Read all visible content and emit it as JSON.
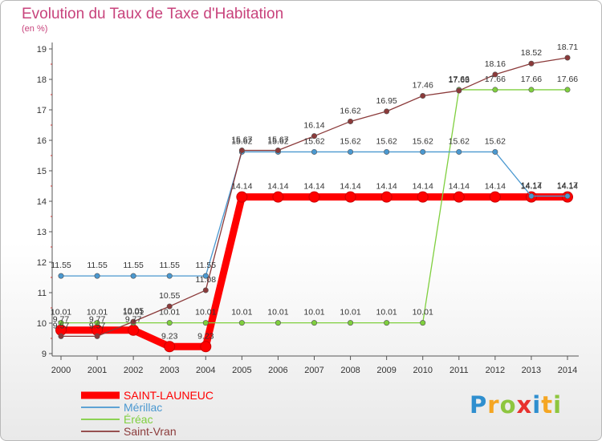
{
  "title": "Evolution du Taux de Taxe d'Habitation",
  "subtitle": "(en %)",
  "logo": {
    "text": "Proxiti",
    "letters": [
      "P",
      "r",
      "o",
      "x",
      "i",
      "t",
      "i"
    ]
  },
  "chart_data": {
    "type": "line",
    "x": [
      "2000",
      "2001",
      "2002",
      "2003",
      "2004",
      "2005",
      "2006",
      "2007",
      "2008",
      "2009",
      "2010",
      "2011",
      "2012",
      "2013",
      "2014"
    ],
    "ylim": [
      9,
      19
    ],
    "yticks": [
      9,
      10,
      11,
      12,
      13,
      14,
      15,
      16,
      17,
      18,
      19
    ],
    "grid": false,
    "legend_position": "bottom-left",
    "series": [
      {
        "name": "SAINT-LAUNEUC",
        "color": "#ff0000",
        "labels": [
          "9.77",
          "9.77",
          "9.77",
          "9.23",
          "9.23",
          "14.14",
          "14.14",
          "14.14",
          "14.14",
          "14.14",
          "14.14",
          "14.14",
          "14.14",
          "14.14",
          "14.14"
        ],
        "values": [
          9.77,
          9.77,
          9.77,
          9.23,
          9.23,
          14.14,
          14.14,
          14.14,
          14.14,
          14.14,
          14.14,
          14.14,
          14.14,
          14.14,
          14.14
        ]
      },
      {
        "name": "Mérillac",
        "color": "#4a98d0",
        "labels": [
          "11.55",
          "11.55",
          "11.55",
          "11.55",
          "11.55",
          "15.62",
          "15.62",
          "15.62",
          "15.62",
          "15.62",
          "15.62",
          "15.62",
          "15.62",
          "14.17",
          "14.17"
        ],
        "values": [
          11.55,
          11.55,
          11.55,
          11.55,
          11.55,
          15.62,
          15.62,
          15.62,
          15.62,
          15.62,
          15.62,
          15.62,
          15.62,
          14.17,
          14.17
        ]
      },
      {
        "name": "Éréac",
        "color": "#7fcf3e",
        "labels": [
          "10.01",
          "10.01",
          "10.01",
          "10.01",
          "10.01",
          "10.01",
          "10.01",
          "10.01",
          "10.01",
          "10.01",
          "10.01",
          "17.66",
          "17.66",
          "17.66",
          "17.66"
        ],
        "values": [
          10.01,
          10.01,
          10.01,
          10.01,
          10.01,
          10.01,
          10.01,
          10.01,
          10.01,
          10.01,
          10.01,
          17.66,
          17.66,
          17.66,
          17.66
        ]
      },
      {
        "name": "Saint-Vran",
        "color": "#8b3a3a",
        "labels": [
          "9.57",
          "9.57",
          "10.05",
          "10.55",
          "11.08",
          "15.67",
          "15.67",
          "16.14",
          "16.62",
          "16.95",
          "17.46",
          "17.63",
          "18.16",
          "18.52",
          "18.71"
        ],
        "values": [
          9.57,
          9.57,
          10.05,
          10.55,
          11.08,
          15.67,
          15.67,
          16.14,
          16.62,
          16.95,
          17.46,
          17.63,
          18.16,
          18.52,
          18.71
        ]
      }
    ]
  }
}
